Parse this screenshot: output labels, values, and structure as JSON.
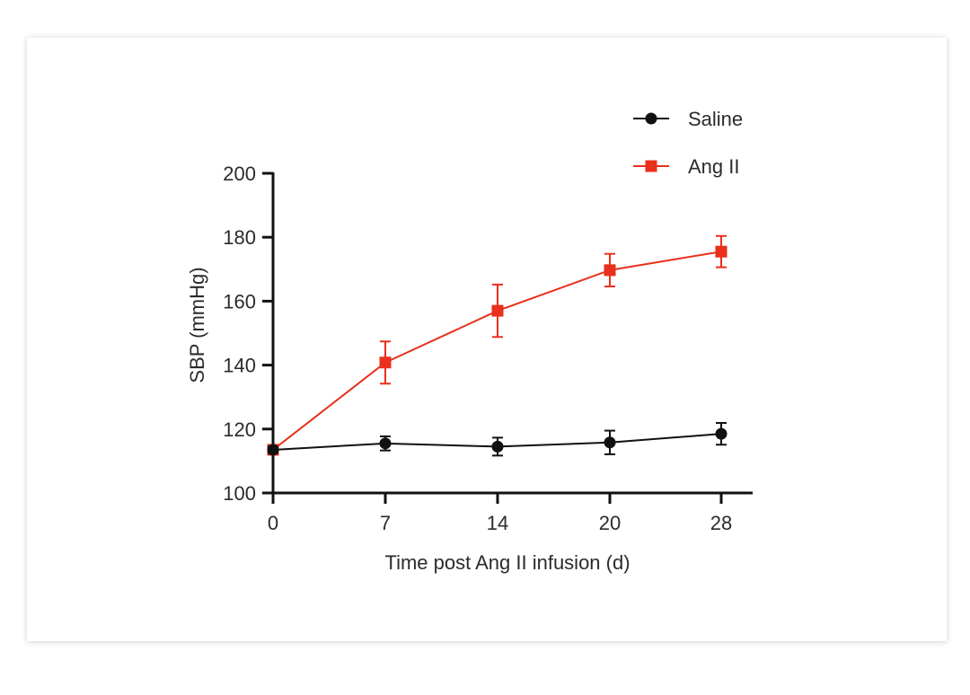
{
  "chart_data": {
    "type": "line",
    "x": [
      0,
      7,
      14,
      20,
      28
    ],
    "x_tick_labels": [
      "0",
      "7",
      "14",
      "20",
      "28"
    ],
    "y_ticks": [
      100,
      120,
      140,
      160,
      180,
      200
    ],
    "xlabel": "Time post Ang II infusion (d)",
    "ylabel": "SBP (mmHg)",
    "ylim": [
      100,
      200
    ],
    "legend_position": "top-right",
    "grid": false,
    "series": [
      {
        "name": "Saline",
        "marker": "circle",
        "color": "#111111",
        "values": [
          113.5,
          115.5,
          114.5,
          115.8,
          118.5
        ],
        "errors": [
          1.0,
          2.2,
          2.8,
          3.7,
          3.4
        ]
      },
      {
        "name": "Ang II",
        "marker": "square",
        "color": "#e8301c",
        "values": [
          113.5,
          140.8,
          157.0,
          169.7,
          175.5
        ],
        "errors": [
          1.0,
          6.6,
          8.2,
          5.1,
          4.9
        ]
      }
    ]
  }
}
